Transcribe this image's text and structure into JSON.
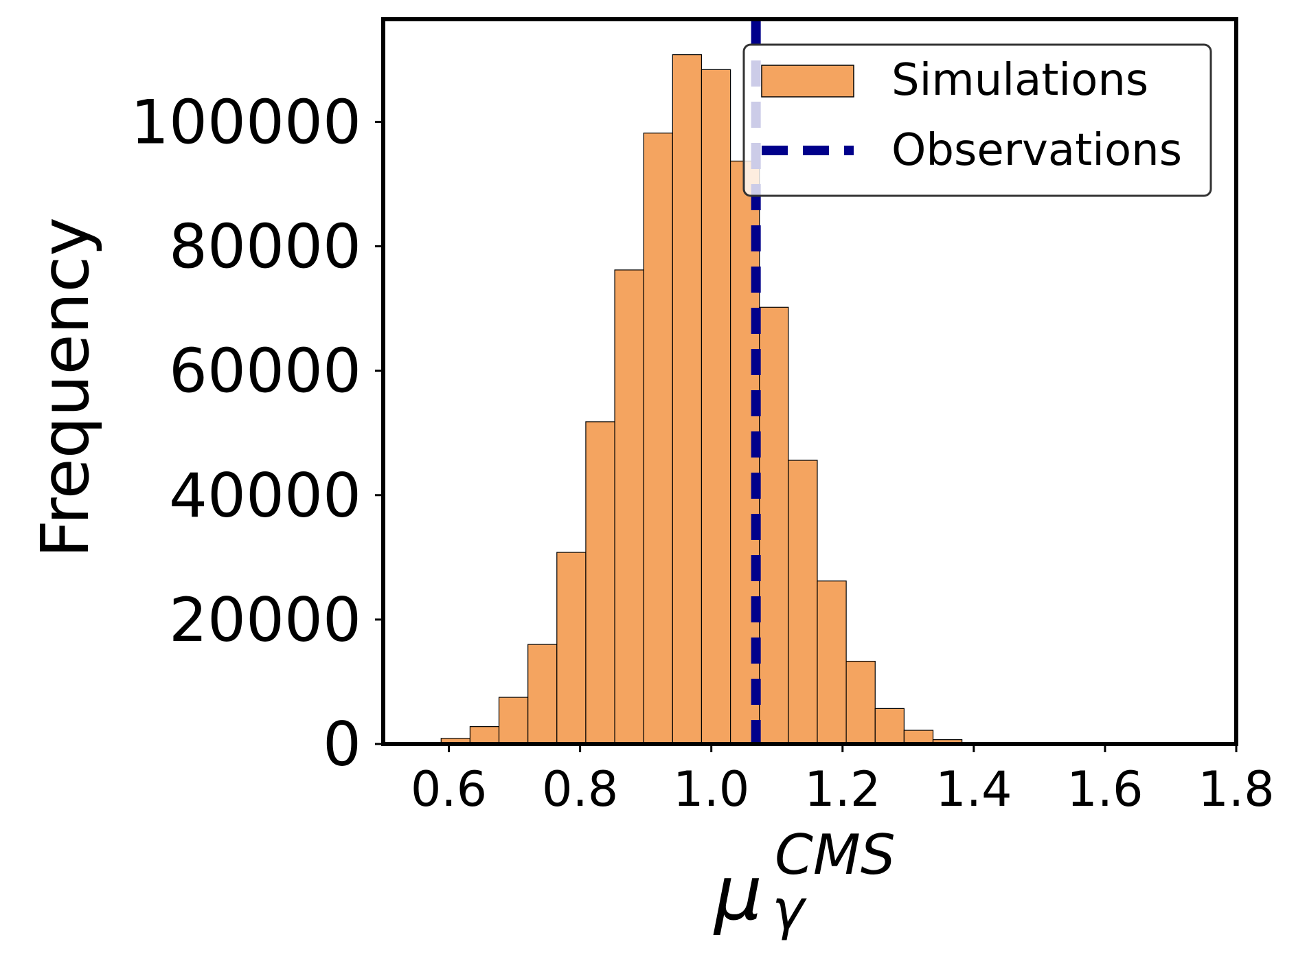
{
  "chart_data": {
    "type": "histogram",
    "bin_edges": [
      0.5,
      0.5441,
      0.5882,
      0.6323,
      0.6764,
      0.7205,
      0.7646,
      0.8087,
      0.8528,
      0.8969,
      0.941,
      0.9851,
      1.0292,
      1.0733,
      1.1174,
      1.1615,
      1.2056,
      1.2497,
      1.2938,
      1.3379,
      1.382,
      1.4261,
      1.4702
    ],
    "values": [
      0,
      0,
      900,
      2800,
      7500,
      16000,
      30800,
      51800,
      76200,
      98200,
      110800,
      108400,
      93700,
      70200,
      45600,
      26200,
      13300,
      5700,
      2200,
      700,
      100,
      0
    ],
    "xlabel": "μ",
    "xlabel_sub": "γ",
    "xlabel_sup": "CMS",
    "ylabel": "Frequency",
    "xlim": [
      0.5,
      1.8
    ],
    "ylim": [
      0,
      116500
    ],
    "xticks": [
      0.6,
      0.8,
      1.0,
      1.2,
      1.4,
      1.6,
      1.8
    ],
    "xtick_labels": [
      "0.6",
      "0.8",
      "1.0",
      "1.2",
      "1.4",
      "1.6",
      "1.8"
    ],
    "yticks": [
      0,
      20000,
      40000,
      60000,
      80000,
      100000
    ],
    "ytick_labels": [
      "0",
      "20000",
      "40000",
      "60000",
      "80000",
      "100000"
    ],
    "observation": 1.068,
    "legend": {
      "position": "top-right",
      "entries": [
        {
          "label": "Simulations",
          "kind": "bar"
        },
        {
          "label": "Observations",
          "kind": "dashed-line"
        }
      ]
    },
    "colors": {
      "bar_fill": "#f4a460",
      "bar_edge": "#000000",
      "observation_line": "#00008b"
    }
  }
}
